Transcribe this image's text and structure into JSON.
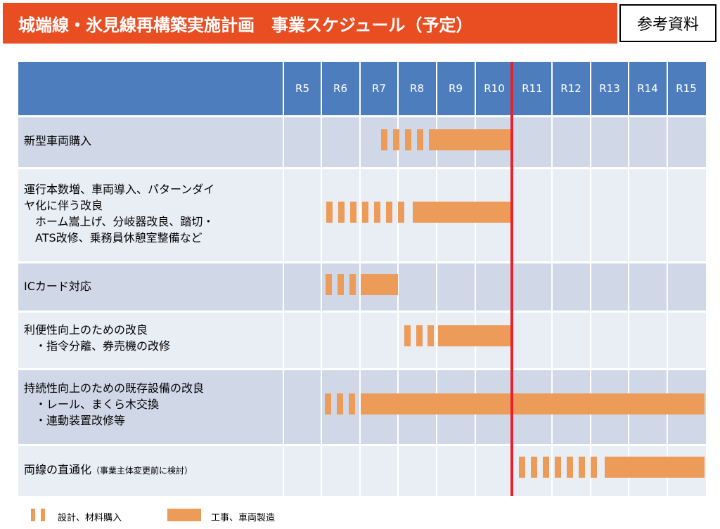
{
  "title": "城端線・氷見線再構築実施計画　事業スケジュール（予定）",
  "reference_label": "参考資料",
  "years": [
    "R5",
    "R6",
    "R7",
    "R8",
    "R9",
    "R10",
    "R11",
    "R12",
    "R13",
    "R14",
    "R15"
  ],
  "rows": [
    {
      "lines": [
        "新型車両購入"
      ]
    },
    {
      "lines": [
        "運行本数増、車両導入、パターンダイ",
        "ヤ化に伴う改良",
        "　ホーム嵩上げ、分岐器改良、踏切・",
        "　ATS改修、乗務員休憩室整備など"
      ]
    },
    {
      "lines": [
        "ICカード対応"
      ]
    },
    {
      "lines": [
        "利便性向上のための改良",
        "　・指令分離、券売機の改修"
      ]
    },
    {
      "lines": [
        "持続性向上のための既存設備の改良",
        "　・レール、まくら木交換",
        "　・連動装置改修等"
      ]
    },
    {
      "main": "両線の直通化",
      "note": "（事業主体変更前に検討）"
    }
  ],
  "legend": {
    "design_label": "設計、材料購入",
    "construction_label": "工事、車両製造"
  },
  "colors": {
    "title_bg": "#e94e22",
    "header_bg": "#4e7dbd",
    "row_dark": "#d0d8e8",
    "row_light": "#e9edf4",
    "bar": "#ec9b59",
    "current_line": "#e8222c"
  }
}
